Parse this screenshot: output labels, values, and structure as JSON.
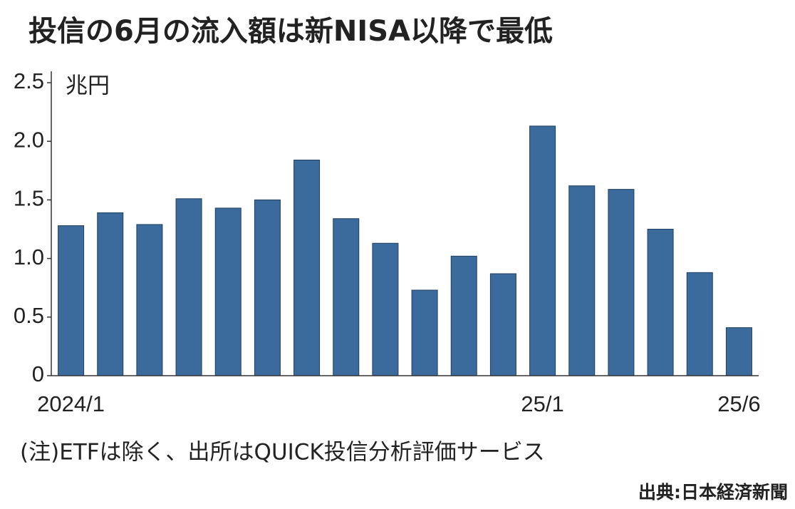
{
  "chart_data": {
    "type": "bar",
    "title": "投信の6月の流入額は新NISA以降で最低",
    "y_unit": "兆円",
    "categories": [
      "2024/1",
      null,
      null,
      null,
      null,
      null,
      null,
      null,
      null,
      null,
      null,
      null,
      "25/1",
      null,
      null,
      null,
      null,
      "25/6"
    ],
    "values": [
      1.28,
      1.39,
      1.29,
      1.51,
      1.43,
      1.5,
      1.84,
      1.34,
      1.13,
      0.73,
      1.02,
      0.87,
      2.13,
      1.62,
      1.59,
      1.25,
      0.88,
      0.41
    ],
    "color": "#3b6b9c",
    "ylim": [
      0,
      2.5
    ],
    "yticks": [
      0,
      0.5,
      {
        "value": 1,
        "label": "1.0"
      },
      1.5,
      {
        "value": 2,
        "label": "2.0"
      },
      2.5
    ],
    "note": "(注)ETFは除く、出所はQUICK投信分析評価サービス",
    "source": "出典:日本経済新聞"
  }
}
